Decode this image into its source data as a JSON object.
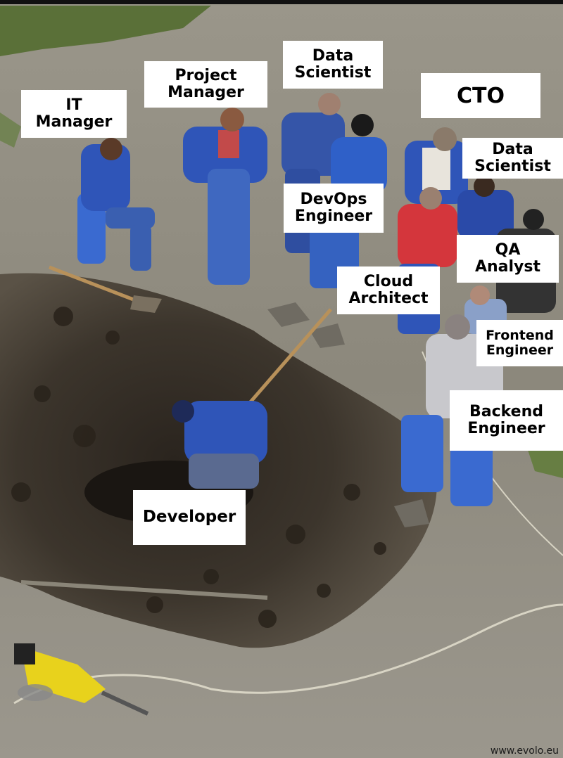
{
  "labels": {
    "it_manager": [
      "IT",
      "Manager"
    ],
    "project_manager": [
      "Project",
      "Manager"
    ],
    "data_scientist_1": [
      "Data",
      "Scientist"
    ],
    "cto": [
      "CTO"
    ],
    "data_scientist_2": [
      "Data",
      "Scientist"
    ],
    "devops_engineer": [
      "DevOps",
      "Engineer"
    ],
    "qa_analyst": [
      "QA",
      "Analyst"
    ],
    "cloud_architect": [
      "Cloud",
      "Architect"
    ],
    "frontend_engineer": [
      "Frontend",
      "Engineer"
    ],
    "backend_engineer": [
      "Backend",
      "Engineer"
    ],
    "developer": [
      "Developer"
    ]
  },
  "watermark": "www.evolo.eu",
  "colors": {
    "asphalt": "#8a8678",
    "dirt": "#3a342c",
    "workwear_blue": "#2f55b8",
    "label_bg": "#ffffff",
    "label_text": "#000000",
    "grass": "#4f6a2a",
    "jackhammer_yellow": "#e8d21c"
  }
}
